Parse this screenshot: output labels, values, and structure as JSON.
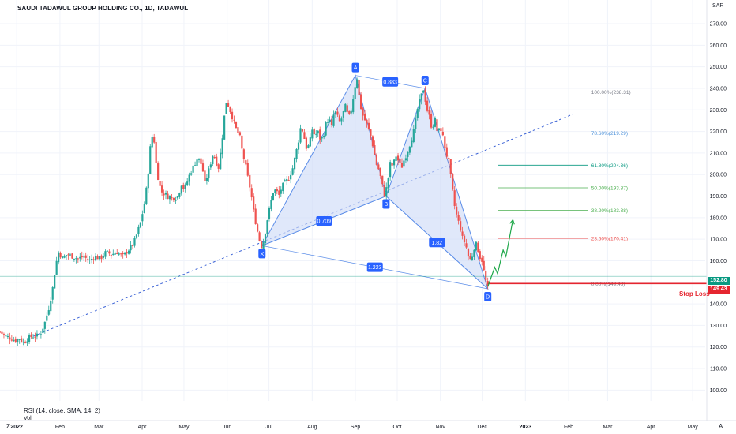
{
  "header": {
    "title": "SAUDI TADAWUL GROUP HOLDING CO., 1D, TADAWUL",
    "currency": "SAR"
  },
  "indicators": {
    "rsi_label": "RSI (14, close, SMA, 14, 2)",
    "vol_label": "Vol"
  },
  "footer": {
    "timezone_button": "Z",
    "auto_button": "A"
  },
  "price_tags": {
    "last_price": "152.80",
    "stop_loss_price": "149.43",
    "stop_loss_label": "Stop Loss"
  },
  "colors": {
    "up": "#26a69a",
    "down": "#ef5350",
    "pattern_fill": "#cfdcf8",
    "pattern_stroke": "#5b8de8",
    "point_label": "#2962ff",
    "stop_loss": "#e5252f",
    "last_price_tag": "#089981",
    "projection": "#1fa84a"
  },
  "chart_data": {
    "type": "candlestick",
    "y_axis": {
      "ticks": [
        100,
        110,
        120,
        130,
        140,
        150,
        160,
        170,
        180,
        190,
        200,
        210,
        220,
        230,
        240,
        250,
        260,
        270
      ],
      "tick_labels": [
        "100.00",
        "110.00",
        "120.00",
        "130.00",
        "140.00",
        "150.00",
        "160.00",
        "170.00",
        "180.00",
        "190.00",
        "200.00",
        "210.00",
        "220.00",
        "230.00",
        "240.00",
        "250.00",
        "260.00",
        "270.00"
      ],
      "range": [
        95,
        281
      ]
    },
    "x_axis": {
      "labels": [
        "2022",
        "Feb",
        "Mar",
        "Apr",
        "May",
        "Jun",
        "Jul",
        "Aug",
        "Sep",
        "Oct",
        "Nov",
        "Dec",
        "2023",
        "Feb",
        "Mar",
        "Apr",
        "May"
      ],
      "label_days": [
        0,
        31,
        59,
        90,
        120,
        151,
        181,
        212,
        243,
        273,
        304,
        334,
        365,
        396,
        424,
        455,
        485
      ],
      "day_range": [
        -12,
        494
      ]
    },
    "price_path": [
      [
        -12,
        127
      ],
      [
        -8,
        125
      ],
      [
        -4,
        124
      ],
      [
        -1,
        123
      ],
      [
        2,
        124
      ],
      [
        5,
        122
      ],
      [
        8,
        124
      ],
      [
        11,
        125
      ],
      [
        14,
        125
      ],
      [
        17,
        126
      ],
      [
        20,
        131
      ],
      [
        23,
        138
      ],
      [
        26,
        148
      ],
      [
        28,
        158
      ],
      [
        30,
        164
      ],
      [
        33,
        161
      ],
      [
        36,
        163
      ],
      [
        40,
        162
      ],
      [
        44,
        161
      ],
      [
        48,
        162
      ],
      [
        52,
        160
      ],
      [
        56,
        162
      ],
      [
        60,
        161
      ],
      [
        64,
        164
      ],
      [
        68,
        163
      ],
      [
        72,
        164
      ],
      [
        76,
        162
      ],
      [
        80,
        165
      ],
      [
        83,
        167
      ],
      [
        86,
        172
      ],
      [
        89,
        178
      ],
      [
        92,
        188
      ],
      [
        94,
        198
      ],
      [
        96,
        214
      ],
      [
        98,
        220
      ],
      [
        100,
        205
      ],
      [
        102,
        196
      ],
      [
        104,
        192
      ],
      [
        108,
        190
      ],
      [
        112,
        189
      ],
      [
        116,
        190
      ],
      [
        118,
        196
      ],
      [
        120,
        193
      ],
      [
        122,
        196
      ],
      [
        124,
        200
      ],
      [
        127,
        204
      ],
      [
        130,
        208
      ],
      [
        133,
        204
      ],
      [
        135,
        196
      ],
      [
        137,
        200
      ],
      [
        139,
        205
      ],
      [
        141,
        210
      ],
      [
        143,
        206
      ],
      [
        145,
        203
      ],
      [
        148,
        220
      ],
      [
        150,
        234
      ],
      [
        152,
        232
      ],
      [
        154,
        228
      ],
      [
        156,
        224
      ],
      [
        158,
        220
      ],
      [
        160,
        218
      ],
      [
        162,
        210
      ],
      [
        164,
        205
      ],
      [
        166,
        198
      ],
      [
        168,
        192
      ],
      [
        170,
        183
      ],
      [
        172,
        176
      ],
      [
        174,
        170
      ],
      [
        176,
        166
      ],
      [
        178,
        172
      ],
      [
        180,
        180
      ],
      [
        182,
        186
      ],
      [
        184,
        192
      ],
      [
        186,
        193
      ],
      [
        188,
        190
      ],
      [
        190,
        194
      ],
      [
        192,
        196
      ],
      [
        195,
        198
      ],
      [
        198,
        203
      ],
      [
        200,
        209
      ],
      [
        202,
        215
      ],
      [
        204,
        223
      ],
      [
        206,
        218
      ],
      [
        208,
        212
      ],
      [
        210,
        214
      ],
      [
        212,
        221
      ],
      [
        214,
        218
      ],
      [
        216,
        220
      ],
      [
        218,
        216
      ],
      [
        220,
        218
      ],
      [
        222,
        224
      ],
      [
        224,
        226
      ],
      [
        226,
        222
      ],
      [
        228,
        230
      ],
      [
        230,
        227
      ],
      [
        232,
        224
      ],
      [
        234,
        228
      ],
      [
        236,
        232
      ],
      [
        238,
        226
      ],
      [
        240,
        230
      ],
      [
        242,
        238
      ],
      [
        244,
        246
      ],
      [
        246,
        234
      ],
      [
        248,
        228
      ],
      [
        250,
        225
      ],
      [
        252,
        222
      ],
      [
        254,
        218
      ],
      [
        256,
        212
      ],
      [
        258,
        205
      ],
      [
        260,
        202
      ],
      [
        262,
        196
      ],
      [
        264,
        190
      ],
      [
        266,
        196
      ],
      [
        268,
        205
      ],
      [
        270,
        204
      ],
      [
        272,
        209
      ],
      [
        274,
        206
      ],
      [
        276,
        203
      ],
      [
        278,
        207
      ],
      [
        280,
        210
      ],
      [
        282,
        214
      ],
      [
        284,
        218
      ],
      [
        286,
        224
      ],
      [
        288,
        232
      ],
      [
        290,
        236
      ],
      [
        292,
        240
      ],
      [
        294,
        231
      ],
      [
        296,
        227
      ],
      [
        298,
        221
      ],
      [
        300,
        226
      ],
      [
        302,
        219
      ],
      [
        304,
        222
      ],
      [
        306,
        217
      ],
      [
        308,
        210
      ],
      [
        310,
        206
      ],
      [
        312,
        196
      ],
      [
        314,
        186
      ],
      [
        316,
        180
      ],
      [
        318,
        176
      ],
      [
        320,
        170
      ],
      [
        322,
        168
      ],
      [
        324,
        162
      ],
      [
        326,
        160
      ],
      [
        328,
        166
      ],
      [
        330,
        168
      ],
      [
        332,
        162
      ],
      [
        334,
        160
      ],
      [
        336,
        152
      ],
      [
        338,
        147
      ]
    ],
    "pattern_points": [
      {
        "label": "X",
        "day": 176,
        "price": 167
      },
      {
        "label": "A",
        "day": 243,
        "price": 246
      },
      {
        "label": "B",
        "day": 265,
        "price": 190
      },
      {
        "label": "C",
        "day": 293,
        "price": 240
      },
      {
        "label": "D",
        "day": 338,
        "price": 147
      }
    ],
    "pattern_ratios": [
      {
        "label": "0.883",
        "legs": [
          "A",
          "C"
        ]
      },
      {
        "label": "0.709",
        "legs": [
          "X",
          "B"
        ]
      },
      {
        "label": "1.82",
        "legs": [
          "B",
          "D"
        ]
      },
      {
        "label": "1.223",
        "legs": [
          "X",
          "D"
        ]
      }
    ],
    "trendline": {
      "from": [
        12,
        125
      ],
      "to": [
        399,
        228
      ]
    },
    "fib_levels": [
      {
        "ratio_label": "100.00%(238.31)",
        "price": 238.31,
        "color": "#787b86"
      },
      {
        "ratio_label": "78.60%(219.29)",
        "price": 219.29,
        "color": "#4a90d9"
      },
      {
        "ratio_label": "61.80%(204.36)",
        "price": 204.36,
        "color": "#089981"
      },
      {
        "ratio_label": "50.00%(193.87)",
        "price": 193.87,
        "color": "#4caf50"
      },
      {
        "ratio_label": "38.20%(183.38)",
        "price": 183.38,
        "color": "#4caf50"
      },
      {
        "ratio_label": "23.60%(170.41)",
        "price": 170.41,
        "color": "#ef5350"
      },
      {
        "ratio_label": "0.00%(149.43)",
        "price": 149.43,
        "color": "#787b86"
      }
    ],
    "fib_day_range": [
      345,
      410
    ],
    "projection_path": [
      [
        338,
        148
      ],
      [
        343,
        157
      ],
      [
        345,
        154
      ],
      [
        349,
        165
      ],
      [
        351,
        162
      ],
      [
        356,
        179
      ]
    ],
    "last_price": 152.8,
    "stop_loss": {
      "price": 149.43,
      "from_day": 338
    }
  }
}
